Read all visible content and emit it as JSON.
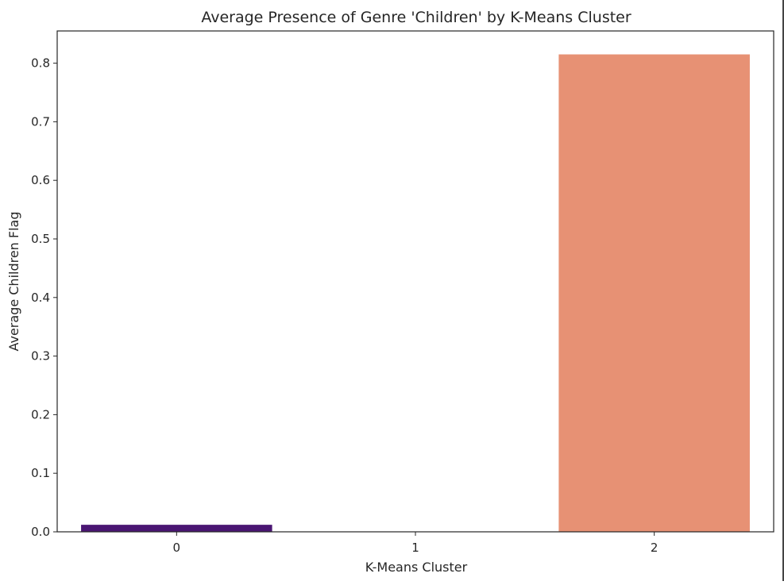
{
  "chart_data": {
    "type": "bar",
    "title": "Average Presence of Genre 'Children' by K-Means Cluster",
    "xlabel": "K-Means Cluster",
    "ylabel": "Average Children Flag",
    "categories": [
      "0",
      "1",
      "2"
    ],
    "values": [
      0.012,
      0.0,
      0.815
    ],
    "colors": [
      "#4a1673",
      "#a73a78",
      "#e79174"
    ],
    "ylim": [
      0,
      0.855
    ],
    "yticks": [
      0.0,
      0.1,
      0.2,
      0.3,
      0.4,
      0.5,
      0.6,
      0.7,
      0.8
    ],
    "ytick_labels": [
      "0.0",
      "0.1",
      "0.2",
      "0.3",
      "0.4",
      "0.5",
      "0.6",
      "0.7",
      "0.8"
    ],
    "grid": false,
    "legend": "none"
  }
}
